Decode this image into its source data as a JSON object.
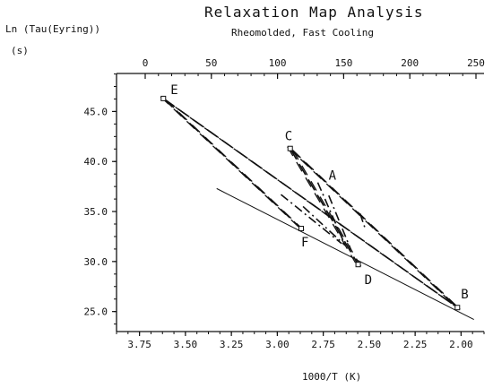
{
  "chart_data": {
    "type": "line",
    "title": "Relaxation Map Analysis",
    "subtitle": "Rheomolded, Fast Cooling",
    "ylabel": "Ln (Tau(Eyring))",
    "yunit": "(s)",
    "xlabel": "1000/T  (K)",
    "xlim": [
      3.875,
      1.875
    ],
    "ylim": [
      23.0,
      48.8
    ],
    "x_ticks": [
      3.75,
      3.5,
      3.25,
      3.0,
      2.75,
      2.5,
      2.25,
      2.0
    ],
    "x_tick_labels": [
      "3.75",
      "3.50",
      "3.25",
      "3.00",
      "2.75",
      "2.50",
      "2.25",
      "2.00"
    ],
    "y_ticks": [
      25.0,
      30.0,
      35.0,
      40.0,
      45.0
    ],
    "y_tick_labels": [
      "25.0",
      "30.0",
      "35.0",
      "40.0",
      "45.0"
    ],
    "top_axis_ticks": [
      0,
      50,
      100,
      150,
      200,
      250
    ],
    "top_axis_labels": [
      "0",
      "50",
      "100",
      "150",
      "200",
      "250"
    ],
    "grid": false,
    "points": [
      {
        "label": "E",
        "x": 3.62,
        "y": 46.3
      },
      {
        "label": "C",
        "x": 2.93,
        "y": 41.3
      },
      {
        "label": "A",
        "x": 2.74,
        "y": 37.3
      },
      {
        "label": "F",
        "x": 2.87,
        "y": 33.3
      },
      {
        "label": "D",
        "x": 2.56,
        "y": 29.7
      },
      {
        "label": "B",
        "x": 2.02,
        "y": 25.4
      }
    ],
    "series": [
      {
        "style": "solid",
        "x": [
          3.33,
          1.93
        ],
        "y": [
          37.3,
          24.2
        ]
      },
      {
        "style": "dashed",
        "x": [
          3.62,
          2.02
        ],
        "y": [
          46.3,
          25.4
        ]
      },
      {
        "style": "dashed",
        "x": [
          2.93,
          2.02
        ],
        "y": [
          41.3,
          25.4
        ]
      },
      {
        "style": "dashed",
        "x": [
          2.93,
          2.56
        ],
        "y": [
          41.3,
          29.7
        ]
      },
      {
        "style": "dashed",
        "x": [
          3.62,
          2.87
        ],
        "y": [
          46.3,
          33.3
        ]
      },
      {
        "style": "dashdot",
        "x": [
          2.78,
          2.63
        ],
        "y": [
          37.9,
          31.6
        ]
      },
      {
        "style": "dashdot",
        "x": [
          2.86,
          2.63
        ],
        "y": [
          35.5,
          31.6
        ]
      },
      {
        "style": "dashdot",
        "x": [
          2.98,
          2.65
        ],
        "y": [
          36.7,
          31.8
        ]
      },
      {
        "style": "dashdot",
        "x": [
          2.72,
          2.6
        ],
        "y": [
          36.6,
          31.2
        ]
      },
      {
        "style": "dashdot",
        "x": [
          2.55,
          2.52
        ],
        "y": [
          34.8,
          33.2
        ]
      }
    ]
  }
}
